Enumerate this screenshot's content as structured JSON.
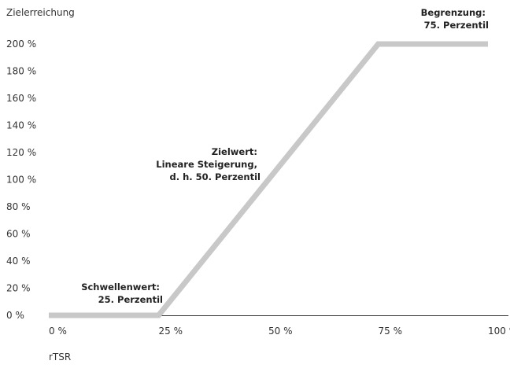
{
  "chart_data": {
    "type": "line",
    "ylabel": "Zielerreichung",
    "xlabel": "rTSR",
    "x_ticks": [
      {
        "value": 0,
        "label": "0 %"
      },
      {
        "value": 25,
        "label": "25 %"
      },
      {
        "value": 50,
        "label": "50 %"
      },
      {
        "value": 75,
        "label": "75 %"
      },
      {
        "value": 100,
        "label": "100 %"
      }
    ],
    "y_ticks": [
      {
        "value": 0,
        "label": "0 %"
      },
      {
        "value": 20,
        "label": "20 %"
      },
      {
        "value": 40,
        "label": "40 %"
      },
      {
        "value": 60,
        "label": "60 %"
      },
      {
        "value": 80,
        "label": "80 %"
      },
      {
        "value": 100,
        "label": "100 %"
      },
      {
        "value": 120,
        "label": "120 %"
      },
      {
        "value": 140,
        "label": "140 %"
      },
      {
        "value": 160,
        "label": "160 %"
      },
      {
        "value": 180,
        "label": "180 %"
      },
      {
        "value": 200,
        "label": "200 %"
      }
    ],
    "xlim": [
      0,
      100
    ],
    "ylim": [
      0,
      200
    ],
    "grid": false,
    "series": [
      {
        "color": "#c8c8c8",
        "points": [
          {
            "x": 0,
            "y": 0
          },
          {
            "x": 25,
            "y": 0
          },
          {
            "x": 75,
            "y": 200
          },
          {
            "x": 100,
            "y": 200
          }
        ]
      }
    ],
    "annotations": [
      {
        "lines": [
          "Schwellenwert:",
          "25. Perzentil"
        ]
      },
      {
        "lines": [
          "Zielwert:",
          "Lineare Steigerung,",
          "d. h. 50. Perzentil"
        ]
      },
      {
        "lines": [
          "Begrenzung:",
          "75. Perzentil"
        ]
      }
    ]
  }
}
